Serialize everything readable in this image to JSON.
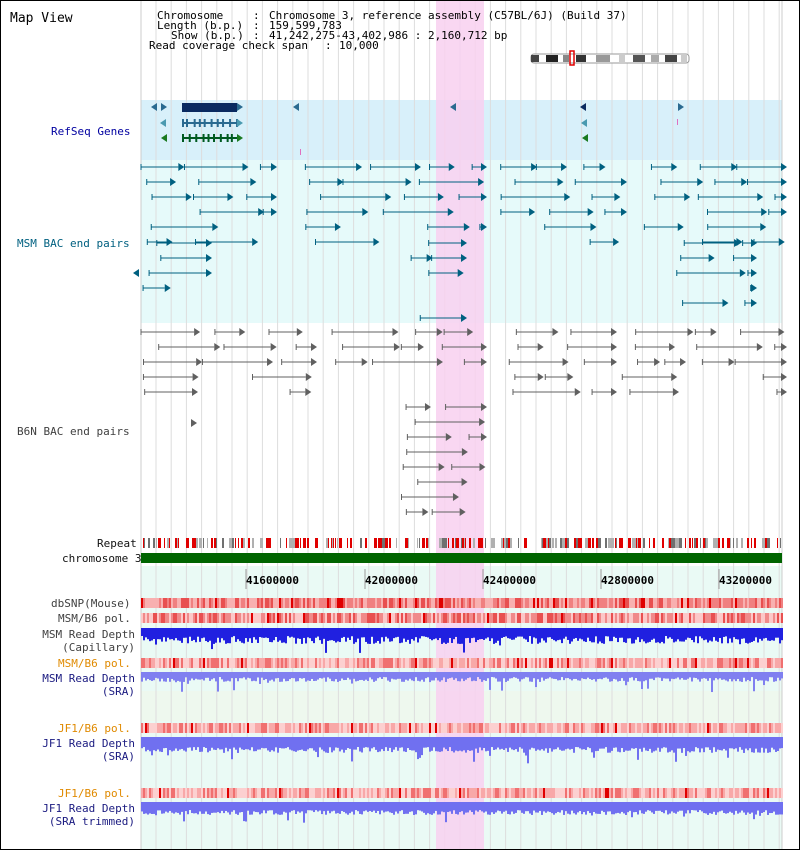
{
  "title": "Map View",
  "info": {
    "chromosome_label": "Chromosome",
    "chromosome_value": "Chromosome 3, reference assembly (C57BL/6J) (Build 37)",
    "length_label": "Length (b.p.)",
    "length_value": "159,599,783",
    "show_label": "Show (b.p.)",
    "show_value": "41,242,275-43,402,986 : 2,160,712 bp",
    "span_label": "Read coverage check span",
    "span_value": "10,000"
  },
  "tracks": {
    "refseq": "RefSeq Genes",
    "msm_bac": "MSM BAC end pairs",
    "b6n_bac": "B6N BAC end pairs",
    "repeat": "Repeat",
    "chromosome": "chromosome 3",
    "dbsnp": "dbSNP(Mouse)",
    "msm_pol1": "MSM/B6 pol.",
    "msm_depth_cap_1": "MSM Read Depth",
    "msm_depth_cap_2": "(Capillary)",
    "msm_pol2": "MSM/B6 pol.",
    "msm_depth_sra_1": "MSM Read Depth",
    "msm_depth_sra_2": "(SRA)",
    "jf1_pol1": "JF1/B6 pol.",
    "jf1_depth_sra_1": "JF1 Read Depth",
    "jf1_depth_sra_2": "(SRA)",
    "jf1_pol2": "JF1/B6 pol.",
    "jf1_depth_trim_1": "JF1 Read Depth",
    "jf1_depth_trim_2": "(SRA trimmed)"
  },
  "axis_ticks": [
    "41600000",
    "42000000",
    "42400000",
    "42800000",
    "43200000"
  ],
  "colors": {
    "highlight": "#f8d0f0",
    "refseq_bg": "#d8f0fa",
    "msm_bg": "#e6fafa",
    "chromosome_bar": "#006400",
    "snp_red": "#e04040",
    "depth_blue": "#2020e0",
    "depth_light": "#8080f0",
    "teal_line": "#006080",
    "gray_line": "#606060"
  }
}
